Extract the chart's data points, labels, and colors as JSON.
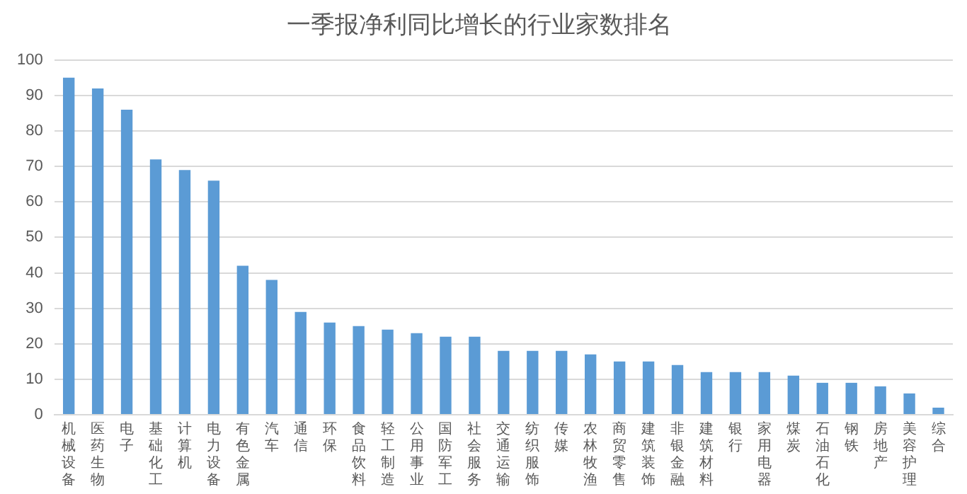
{
  "chart_data": {
    "type": "bar",
    "title": "一季报净利同比增长的行业家数排名",
    "categories": [
      "机械设备",
      "医药生物",
      "电子",
      "基础化工",
      "计算机",
      "电力设备",
      "有色金属",
      "汽车",
      "通信",
      "环保",
      "食品饮料",
      "轻工制造",
      "公用事业",
      "国防军工",
      "社会服务",
      "交通运输",
      "纺织服饰",
      "传媒",
      "农林牧渔",
      "商贸零售",
      "建筑装饰",
      "非银金融",
      "建筑材料",
      "银行",
      "家用电器",
      "煤炭",
      "石油石化",
      "钢铁",
      "房地产",
      "美容护理",
      "综合"
    ],
    "values": [
      95,
      92,
      86,
      72,
      69,
      66,
      42,
      38,
      29,
      26,
      25,
      24,
      23,
      22,
      22,
      18,
      18,
      18,
      17,
      15,
      15,
      14,
      12,
      12,
      12,
      11,
      9,
      9,
      8,
      6,
      2
    ],
    "color": "#5b9bd5",
    "ylim": [
      0,
      100
    ],
    "yticks": [
      0,
      10,
      20,
      30,
      40,
      50,
      60,
      70,
      80,
      90,
      100
    ],
    "grid": "y",
    "legend": false
  }
}
